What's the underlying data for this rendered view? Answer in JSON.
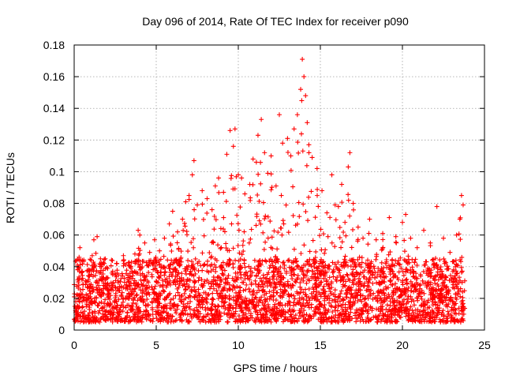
{
  "chart_data": {
    "type": "scatter",
    "title": "Day 096 of 2014, Rate Of TEC Index for receiver p090",
    "xlabel": "GPS time / hours",
    "ylabel": "ROTI / TECUs",
    "xlim": [
      0,
      25
    ],
    "ylim": [
      0,
      0.18
    ],
    "xticks": [
      0,
      5,
      10,
      15,
      20,
      25
    ],
    "xtick_labels": [
      "0",
      "5",
      "10",
      "15",
      "20",
      "25"
    ],
    "yticks": [
      0,
      0.02,
      0.04,
      0.06,
      0.08,
      0.1,
      0.12,
      0.14,
      0.16,
      0.18
    ],
    "ytick_labels": [
      "0",
      "0.02",
      "0.04",
      "0.06",
      "0.08",
      "0.1",
      "0.12",
      "0.14",
      "0.16",
      "0.18"
    ],
    "grid": true,
    "marker": "+",
    "color": "#ff0000",
    "x_data_range": [
      0,
      23.8
    ],
    "series": [
      {
        "name": "ROTI",
        "points": [
          [
            0.1,
            0.018
          ],
          [
            0.2,
            0.041
          ],
          [
            0.3,
            0.046
          ],
          [
            0.35,
            0.052
          ],
          [
            0.5,
            0.044
          ],
          [
            0.7,
            0.031
          ],
          [
            0.9,
            0.038
          ],
          [
            1.1,
            0.047
          ],
          [
            1.2,
            0.057
          ],
          [
            1.4,
            0.059
          ],
          [
            1.6,
            0.045
          ],
          [
            1.8,
            0.033
          ],
          [
            2.0,
            0.028
          ],
          [
            2.3,
            0.036
          ],
          [
            2.6,
            0.042
          ],
          [
            3.0,
            0.047
          ],
          [
            3.4,
            0.04
          ],
          [
            3.7,
            0.048
          ],
          [
            3.9,
            0.063
          ],
          [
            4.0,
            0.06
          ],
          [
            4.3,
            0.055
          ],
          [
            4.6,
            0.049
          ],
          [
            4.9,
            0.057
          ],
          [
            5.2,
            0.05
          ],
          [
            5.5,
            0.058
          ],
          [
            5.8,
            0.067
          ],
          [
            6.0,
            0.075
          ],
          [
            6.3,
            0.062
          ],
          [
            6.6,
            0.07
          ],
          [
            6.8,
            0.081
          ],
          [
            7.0,
            0.085
          ],
          [
            7.2,
            0.098
          ],
          [
            7.3,
            0.107
          ],
          [
            7.5,
            0.079
          ],
          [
            7.8,
            0.088
          ],
          [
            8.1,
            0.083
          ],
          [
            8.4,
            0.076
          ],
          [
            8.6,
            0.091
          ],
          [
            8.8,
            0.096
          ],
          [
            9.1,
            0.087
          ],
          [
            9.3,
            0.111
          ],
          [
            9.5,
            0.126
          ],
          [
            9.7,
            0.116
          ],
          [
            9.8,
            0.127
          ],
          [
            10.0,
            0.098
          ],
          [
            10.2,
            0.096
          ],
          [
            10.4,
            0.086
          ],
          [
            10.7,
            0.092
          ],
          [
            10.9,
            0.108
          ],
          [
            11.1,
            0.106
          ],
          [
            11.2,
            0.123
          ],
          [
            11.4,
            0.133
          ],
          [
            11.6,
            0.112
          ],
          [
            11.8,
            0.099
          ],
          [
            12.0,
            0.11
          ],
          [
            12.3,
            0.091
          ],
          [
            12.5,
            0.136
          ],
          [
            12.7,
            0.118
          ],
          [
            13.0,
            0.121
          ],
          [
            13.2,
            0.11
          ],
          [
            13.4,
            0.127
          ],
          [
            13.6,
            0.136
          ],
          [
            13.8,
            0.152
          ],
          [
            13.9,
            0.171
          ],
          [
            14.0,
            0.16
          ],
          [
            14.1,
            0.148
          ],
          [
            14.2,
            0.131
          ],
          [
            14.3,
            0.117
          ],
          [
            14.5,
            0.109
          ],
          [
            14.8,
            0.102
          ],
          [
            15.1,
            0.088
          ],
          [
            15.4,
            0.074
          ],
          [
            15.7,
            0.098
          ],
          [
            15.9,
            0.079
          ],
          [
            16.1,
            0.078
          ],
          [
            16.3,
            0.092
          ],
          [
            16.5,
            0.068
          ],
          [
            16.7,
            0.103
          ],
          [
            16.8,
            0.112
          ],
          [
            17.0,
            0.08
          ],
          [
            17.3,
            0.065
          ],
          [
            17.6,
            0.058
          ],
          [
            18.0,
            0.07
          ],
          [
            18.4,
            0.057
          ],
          [
            18.8,
            0.061
          ],
          [
            19.2,
            0.071
          ],
          [
            19.6,
            0.059
          ],
          [
            20.0,
            0.068
          ],
          [
            20.2,
            0.073
          ],
          [
            20.5,
            0.058
          ],
          [
            20.9,
            0.052
          ],
          [
            21.3,
            0.063
          ],
          [
            21.7,
            0.055
          ],
          [
            22.1,
            0.078
          ],
          [
            22.5,
            0.058
          ],
          [
            22.9,
            0.049
          ],
          [
            23.3,
            0.06
          ],
          [
            23.5,
            0.07
          ],
          [
            23.6,
            0.085
          ],
          [
            23.7,
            0.079
          ]
        ]
      }
    ],
    "dense_band": {
      "note": "dense cloud of points across the whole day",
      "y_typical_range": [
        0.005,
        0.045
      ]
    }
  }
}
